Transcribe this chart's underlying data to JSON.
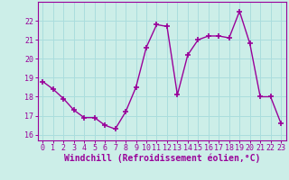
{
  "x": [
    0,
    1,
    2,
    3,
    4,
    5,
    6,
    7,
    8,
    9,
    10,
    11,
    12,
    13,
    14,
    15,
    16,
    17,
    18,
    19,
    20,
    21,
    22,
    23
  ],
  "y": [
    18.8,
    18.4,
    17.9,
    17.3,
    16.9,
    16.9,
    16.5,
    16.3,
    17.2,
    18.5,
    20.6,
    21.8,
    21.7,
    18.1,
    20.2,
    21.0,
    21.2,
    21.2,
    21.1,
    22.5,
    20.8,
    18.0,
    18.0,
    16.6
  ],
  "line_color": "#990099",
  "marker": "+",
  "markersize": 4,
  "markeredgewidth": 1.2,
  "linewidth": 1.0,
  "xlabel": "Windchill (Refroidissement éolien,°C)",
  "xlabel_fontsize": 7.0,
  "ylabel_ticks": [
    16,
    17,
    18,
    19,
    20,
    21,
    22
  ],
  "xtick_labels": [
    "0",
    "1",
    "2",
    "3",
    "4",
    "5",
    "6",
    "7",
    "8",
    "9",
    "10",
    "11",
    "12",
    "13",
    "14",
    "15",
    "16",
    "17",
    "18",
    "19",
    "20",
    "21",
    "22",
    "23"
  ],
  "ylim": [
    15.7,
    23.0
  ],
  "xlim": [
    -0.5,
    23.5
  ],
  "bg_color": "#cceee8",
  "grid_color": "#aadddd",
  "spine_color": "#990099",
  "tick_color": "#990099",
  "tick_fontsize": 6.0
}
